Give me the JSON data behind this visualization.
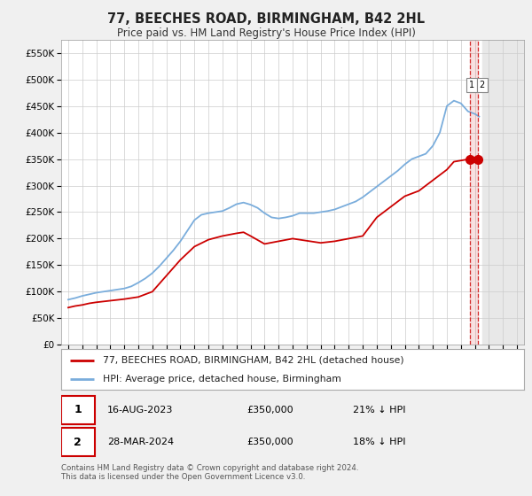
{
  "title": "77, BEECHES ROAD, BIRMINGHAM, B42 2HL",
  "subtitle": "Price paid vs. HM Land Registry's House Price Index (HPI)",
  "ytick_values": [
    0,
    50000,
    100000,
    150000,
    200000,
    250000,
    300000,
    350000,
    400000,
    450000,
    500000,
    550000
  ],
  "ylim": [
    0,
    575000
  ],
  "xlim_start": 1994.5,
  "xlim_end": 2027.5,
  "hpi_color": "#7aaddc",
  "price_color": "#cc0000",
  "background_color": "#f0f0f0",
  "plot_bg_color": "#ffffff",
  "grid_color": "#cccccc",
  "legend_label_price": "77, BEECHES ROAD, BIRMINGHAM, B42 2HL (detached house)",
  "legend_label_hpi": "HPI: Average price, detached house, Birmingham",
  "point1_date": "16-AUG-2023",
  "point1_price": "£350,000",
  "point1_hpi": "21% ↓ HPI",
  "point2_date": "28-MAR-2024",
  "point2_price": "£350,000",
  "point2_hpi": "18% ↓ HPI",
  "footer": "Contains HM Land Registry data © Crown copyright and database right 2024.\nThis data is licensed under the Open Government Licence v3.0.",
  "point1_x": 2023.62,
  "point1_y": 350000,
  "point2_x": 2024.24,
  "point2_y": 350000,
  "hatch_region_start": 2024.5,
  "hpi_years": [
    1995,
    1995.5,
    1996,
    1996.5,
    1997,
    1997.5,
    1998,
    1998.5,
    1999,
    1999.5,
    2000,
    2000.5,
    2001,
    2001.5,
    2002,
    2002.5,
    2003,
    2003.5,
    2004,
    2004.5,
    2005,
    2005.5,
    2006,
    2006.5,
    2007,
    2007.5,
    2008,
    2008.5,
    2009,
    2009.5,
    2010,
    2010.5,
    2011,
    2011.5,
    2012,
    2012.5,
    2013,
    2013.5,
    2014,
    2014.5,
    2015,
    2015.5,
    2016,
    2016.5,
    2017,
    2017.5,
    2018,
    2018.5,
    2019,
    2019.5,
    2020,
    2020.5,
    2021,
    2021.5,
    2022,
    2022.5,
    2023,
    2023.5,
    2024,
    2024.3
  ],
  "hpi_vals": [
    85000,
    88000,
    92000,
    95000,
    98000,
    100000,
    102000,
    104000,
    106000,
    110000,
    117000,
    125000,
    135000,
    148000,
    163000,
    178000,
    195000,
    215000,
    235000,
    245000,
    248000,
    250000,
    252000,
    258000,
    265000,
    268000,
    264000,
    258000,
    248000,
    240000,
    238000,
    240000,
    243000,
    248000,
    248000,
    248000,
    250000,
    252000,
    255000,
    260000,
    265000,
    270000,
    278000,
    288000,
    298000,
    308000,
    318000,
    328000,
    340000,
    350000,
    355000,
    360000,
    375000,
    400000,
    450000,
    460000,
    455000,
    440000,
    435000,
    430000
  ],
  "price_years": [
    1995,
    1995.5,
    1996,
    1996.5,
    1997,
    1998,
    1999,
    2000,
    2001,
    2002,
    2003,
    2004,
    2005,
    2006,
    2007,
    2007.5,
    2008,
    2009,
    2010,
    2011,
    2012,
    2013,
    2014,
    2015,
    2016,
    2017,
    2018,
    2019,
    2020,
    2021,
    2022,
    2022.5,
    2023.62,
    2024.24
  ],
  "price_vals": [
    70000,
    73000,
    75000,
    78000,
    80000,
    83000,
    86000,
    90000,
    100000,
    130000,
    160000,
    185000,
    198000,
    205000,
    210000,
    212000,
    205000,
    190000,
    195000,
    200000,
    196000,
    192000,
    195000,
    200000,
    205000,
    240000,
    260000,
    280000,
    290000,
    310000,
    330000,
    345000,
    350000,
    350000
  ]
}
